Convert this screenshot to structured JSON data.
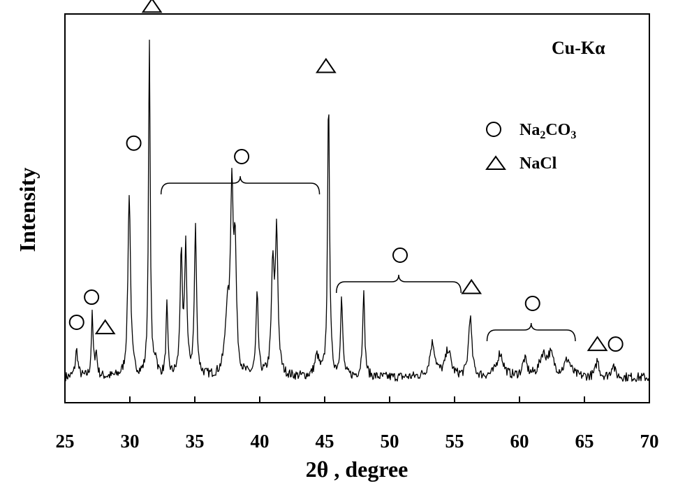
{
  "chart_data": {
    "type": "line",
    "title": "",
    "xlabel": "2θ , degree",
    "ylabel": "Intensity",
    "xlim": [
      25,
      70
    ],
    "xticks": [
      25,
      30,
      35,
      40,
      45,
      50,
      55,
      60,
      65,
      70
    ],
    "y_unit": "relative",
    "grid": false,
    "annotation": "Cu-Kα",
    "legend": {
      "placement": "top-right",
      "entries": [
        {
          "marker": "circle",
          "label_main": "Na",
          "label_sub1": "2",
          "label_mid": "CO",
          "label_sub2": "3"
        },
        {
          "marker": "triangle",
          "label_main": "NaCl"
        }
      ]
    },
    "peaks": [
      {
        "x": 25.9,
        "y": 0.08,
        "w": 0.12
      },
      {
        "x": 27.1,
        "y": 0.18,
        "w": 0.08
      },
      {
        "x": 27.4,
        "y": 0.07,
        "w": 0.1
      },
      {
        "x": 29.95,
        "y": 0.55,
        "w": 0.12
      },
      {
        "x": 31.5,
        "y": 1.0,
        "w": 0.08
      },
      {
        "x": 32.0,
        "y": 0.05,
        "w": 0.1
      },
      {
        "x": 32.85,
        "y": 0.21,
        "w": 0.08
      },
      {
        "x": 33.95,
        "y": 0.36,
        "w": 0.1
      },
      {
        "x": 34.3,
        "y": 0.38,
        "w": 0.1
      },
      {
        "x": 35.05,
        "y": 0.44,
        "w": 0.1
      },
      {
        "x": 37.5,
        "y": 0.18,
        "w": 0.2
      },
      {
        "x": 37.85,
        "y": 0.52,
        "w": 0.12
      },
      {
        "x": 38.1,
        "y": 0.35,
        "w": 0.12
      },
      {
        "x": 39.8,
        "y": 0.24,
        "w": 0.1
      },
      {
        "x": 41.0,
        "y": 0.32,
        "w": 0.12
      },
      {
        "x": 41.3,
        "y": 0.42,
        "w": 0.12
      },
      {
        "x": 44.4,
        "y": 0.06,
        "w": 0.2
      },
      {
        "x": 45.3,
        "y": 0.84,
        "w": 0.09
      },
      {
        "x": 46.3,
        "y": 0.23,
        "w": 0.1
      },
      {
        "x": 48.0,
        "y": 0.25,
        "w": 0.1
      },
      {
        "x": 53.3,
        "y": 0.1,
        "w": 0.25
      },
      {
        "x": 54.5,
        "y": 0.08,
        "w": 0.25
      },
      {
        "x": 56.2,
        "y": 0.18,
        "w": 0.15
      },
      {
        "x": 58.5,
        "y": 0.07,
        "w": 0.3
      },
      {
        "x": 60.4,
        "y": 0.05,
        "w": 0.2
      },
      {
        "x": 61.8,
        "y": 0.06,
        "w": 0.3
      },
      {
        "x": 62.4,
        "y": 0.06,
        "w": 0.3
      },
      {
        "x": 63.7,
        "y": 0.05,
        "w": 0.3
      },
      {
        "x": 66.0,
        "y": 0.05,
        "w": 0.15
      },
      {
        "x": 67.2,
        "y": 0.04,
        "w": 0.15
      }
    ],
    "peak_markers": [
      {
        "x": 25.9,
        "y": 0.165,
        "marker": "circle"
      },
      {
        "x": 27.05,
        "y": 0.24,
        "marker": "circle"
      },
      {
        "x": 28.1,
        "y": 0.15,
        "marker": "triangle"
      },
      {
        "x": 30.3,
        "y": 0.7,
        "marker": "circle"
      },
      {
        "x": 31.7,
        "y": 1.11,
        "marker": "triangle"
      },
      {
        "x": 45.1,
        "y": 0.93,
        "marker": "triangle"
      },
      {
        "x": 56.3,
        "y": 0.27,
        "marker": "triangle"
      },
      {
        "x": 66.0,
        "y": 0.1,
        "marker": "triangle"
      },
      {
        "x": 67.4,
        "y": 0.1,
        "marker": "circle"
      }
    ],
    "bracket_groups": [
      {
        "x0": 32.4,
        "x1": 44.6,
        "marker": "circle"
      },
      {
        "x0": 45.9,
        "x1": 55.5,
        "marker": "circle"
      },
      {
        "x0": 57.5,
        "x1": 64.3,
        "marker": "circle"
      }
    ]
  }
}
